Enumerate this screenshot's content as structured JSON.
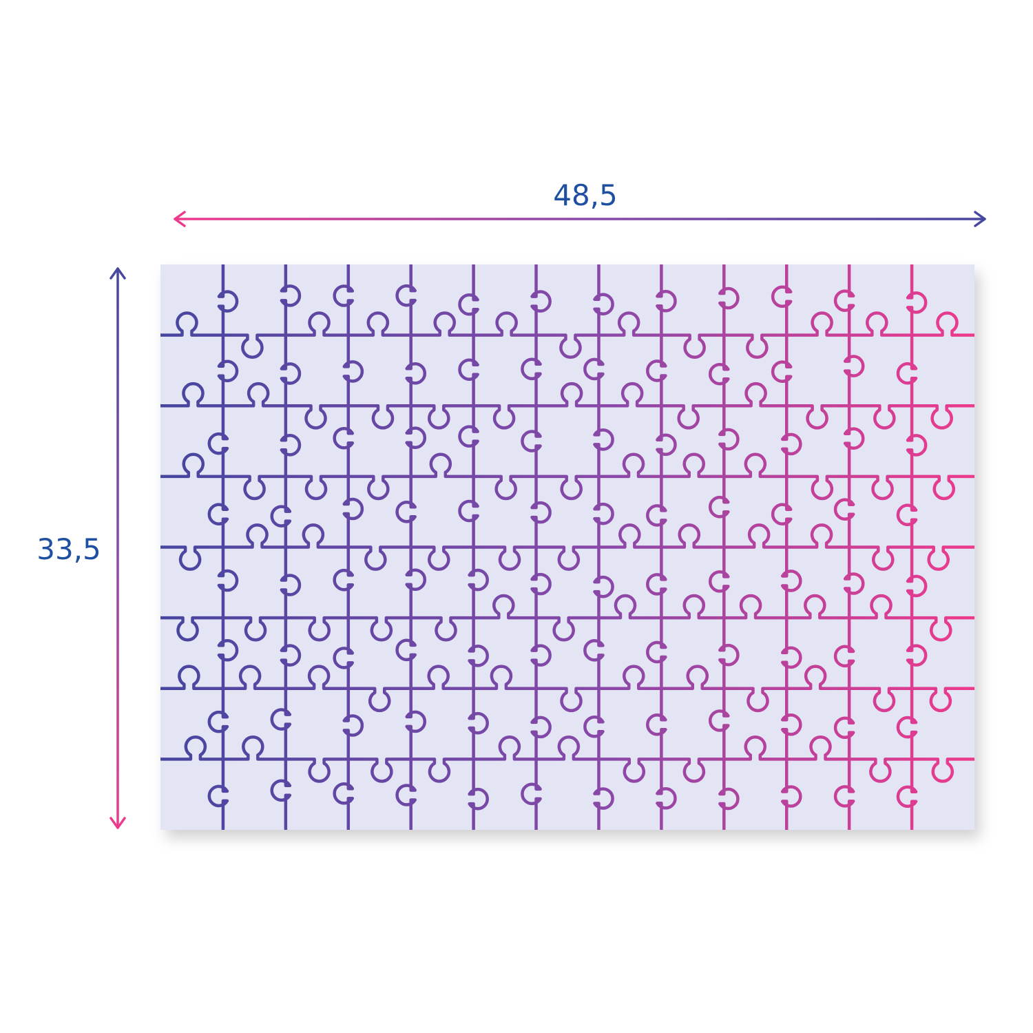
{
  "dimensions": {
    "width_label": "48,5",
    "height_label": "33,5"
  },
  "colors": {
    "label_text": "#1e4fa0",
    "gradient_blue": "#4646a0",
    "gradient_purple": "#8a48a8",
    "gradient_pink": "#ee3a8c",
    "puzzle_background": "#e3e4f4"
  }
}
